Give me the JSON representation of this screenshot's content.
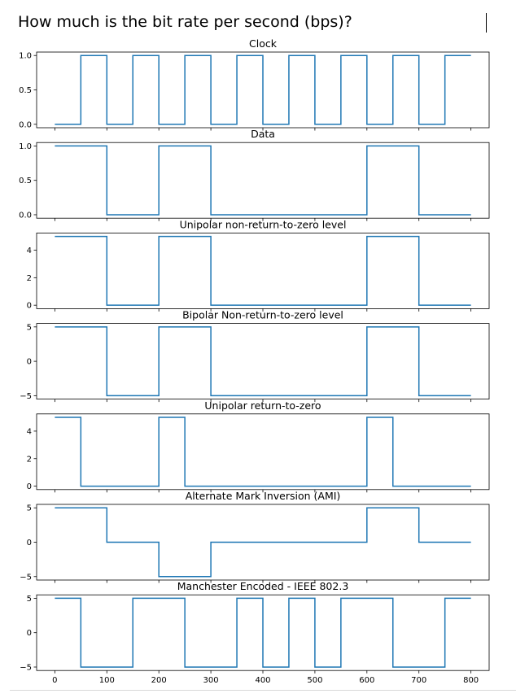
{
  "question": "How much is the bit rate per second (bps)?",
  "series_color": "#1f77b4",
  "x_ticks": [
    0,
    100,
    200,
    300,
    400,
    500,
    600,
    700,
    800
  ],
  "chart_data": [
    {
      "type": "line",
      "title": "Clock",
      "xlim": [
        -35,
        835
      ],
      "ylim": [
        -0.05,
        1.05
      ],
      "yticks": [
        0.0,
        0.5,
        1.0
      ],
      "ytick_labels": [
        "0.0",
        "0.5",
        "1.0"
      ],
      "x": [
        0,
        50,
        50,
        100,
        100,
        150,
        150,
        200,
        200,
        250,
        250,
        300,
        300,
        350,
        350,
        400,
        400,
        450,
        450,
        500,
        500,
        550,
        550,
        600,
        600,
        650,
        650,
        700,
        700,
        750,
        750,
        800
      ],
      "y": [
        0,
        0,
        1,
        1,
        0,
        0,
        1,
        1,
        0,
        0,
        1,
        1,
        0,
        0,
        1,
        1,
        0,
        0,
        1,
        1,
        0,
        0,
        1,
        1,
        0,
        0,
        1,
        1,
        0,
        0,
        1,
        1
      ]
    },
    {
      "type": "line",
      "title": "Data",
      "xlim": [
        -35,
        835
      ],
      "ylim": [
        -0.05,
        1.05
      ],
      "yticks": [
        0.0,
        0.5,
        1.0
      ],
      "ytick_labels": [
        "0.0",
        "0.5",
        "1.0"
      ],
      "x": [
        0,
        100,
        100,
        200,
        200,
        300,
        300,
        600,
        600,
        700,
        700,
        800
      ],
      "y": [
        1,
        1,
        0,
        0,
        1,
        1,
        0,
        0,
        1,
        1,
        0,
        0
      ]
    },
    {
      "type": "line",
      "title": "Unipolar non-return-to-zero level",
      "xlim": [
        -35,
        835
      ],
      "ylim": [
        -0.25,
        5.25
      ],
      "yticks": [
        0,
        2,
        4
      ],
      "ytick_labels": [
        "0",
        "2",
        "4"
      ],
      "x": [
        0,
        100,
        100,
        200,
        200,
        300,
        300,
        600,
        600,
        700,
        700,
        800
      ],
      "y": [
        5,
        5,
        0,
        0,
        5,
        5,
        0,
        0,
        5,
        5,
        0,
        0
      ]
    },
    {
      "type": "line",
      "title": "Bipolar Non-return-to-zero level",
      "xlim": [
        -35,
        835
      ],
      "ylim": [
        -5.5,
        5.5
      ],
      "yticks": [
        -5,
        0,
        5
      ],
      "ytick_labels": [
        "−5",
        "0",
        "5"
      ],
      "x": [
        0,
        100,
        100,
        200,
        200,
        300,
        300,
        600,
        600,
        700,
        700,
        800
      ],
      "y": [
        5,
        5,
        -5,
        -5,
        5,
        5,
        -5,
        -5,
        5,
        5,
        -5,
        -5
      ]
    },
    {
      "type": "line",
      "title": "Unipolar return-to-zero",
      "xlim": [
        -35,
        835
      ],
      "ylim": [
        -0.25,
        5.25
      ],
      "yticks": [
        0,
        2,
        4
      ],
      "ytick_labels": [
        "0",
        "2",
        "4"
      ],
      "x": [
        0,
        50,
        50,
        200,
        200,
        250,
        250,
        600,
        600,
        650,
        650,
        800
      ],
      "y": [
        5,
        5,
        0,
        0,
        5,
        5,
        0,
        0,
        5,
        5,
        0,
        0
      ]
    },
    {
      "type": "line",
      "title": "Alternate Mark Inversion (AMI)",
      "xlim": [
        -35,
        835
      ],
      "ylim": [
        -5.5,
        5.5
      ],
      "yticks": [
        -5,
        0,
        5
      ],
      "ytick_labels": [
        "−5",
        "0",
        "5"
      ],
      "x": [
        0,
        100,
        100,
        200,
        200,
        300,
        300,
        600,
        600,
        700,
        700,
        800
      ],
      "y": [
        5,
        5,
        0,
        0,
        -5,
        -5,
        0,
        0,
        5,
        5,
        0,
        0
      ]
    },
    {
      "type": "line",
      "title": "Manchester Encoded - IEEE 802.3",
      "xlim": [
        -35,
        835
      ],
      "ylim": [
        -5.5,
        5.5
      ],
      "yticks": [
        -5,
        0,
        5
      ],
      "ytick_labels": [
        "−5",
        "0",
        "5"
      ],
      "x": [
        0,
        50,
        50,
        150,
        150,
        250,
        250,
        350,
        350,
        400,
        400,
        450,
        450,
        500,
        500,
        550,
        550,
        650,
        650,
        750,
        750,
        800
      ],
      "y": [
        5,
        5,
        -5,
        -5,
        5,
        5,
        -5,
        -5,
        5,
        5,
        -5,
        -5,
        5,
        5,
        -5,
        -5,
        5,
        5,
        -5,
        -5,
        5,
        5
      ]
    }
  ]
}
